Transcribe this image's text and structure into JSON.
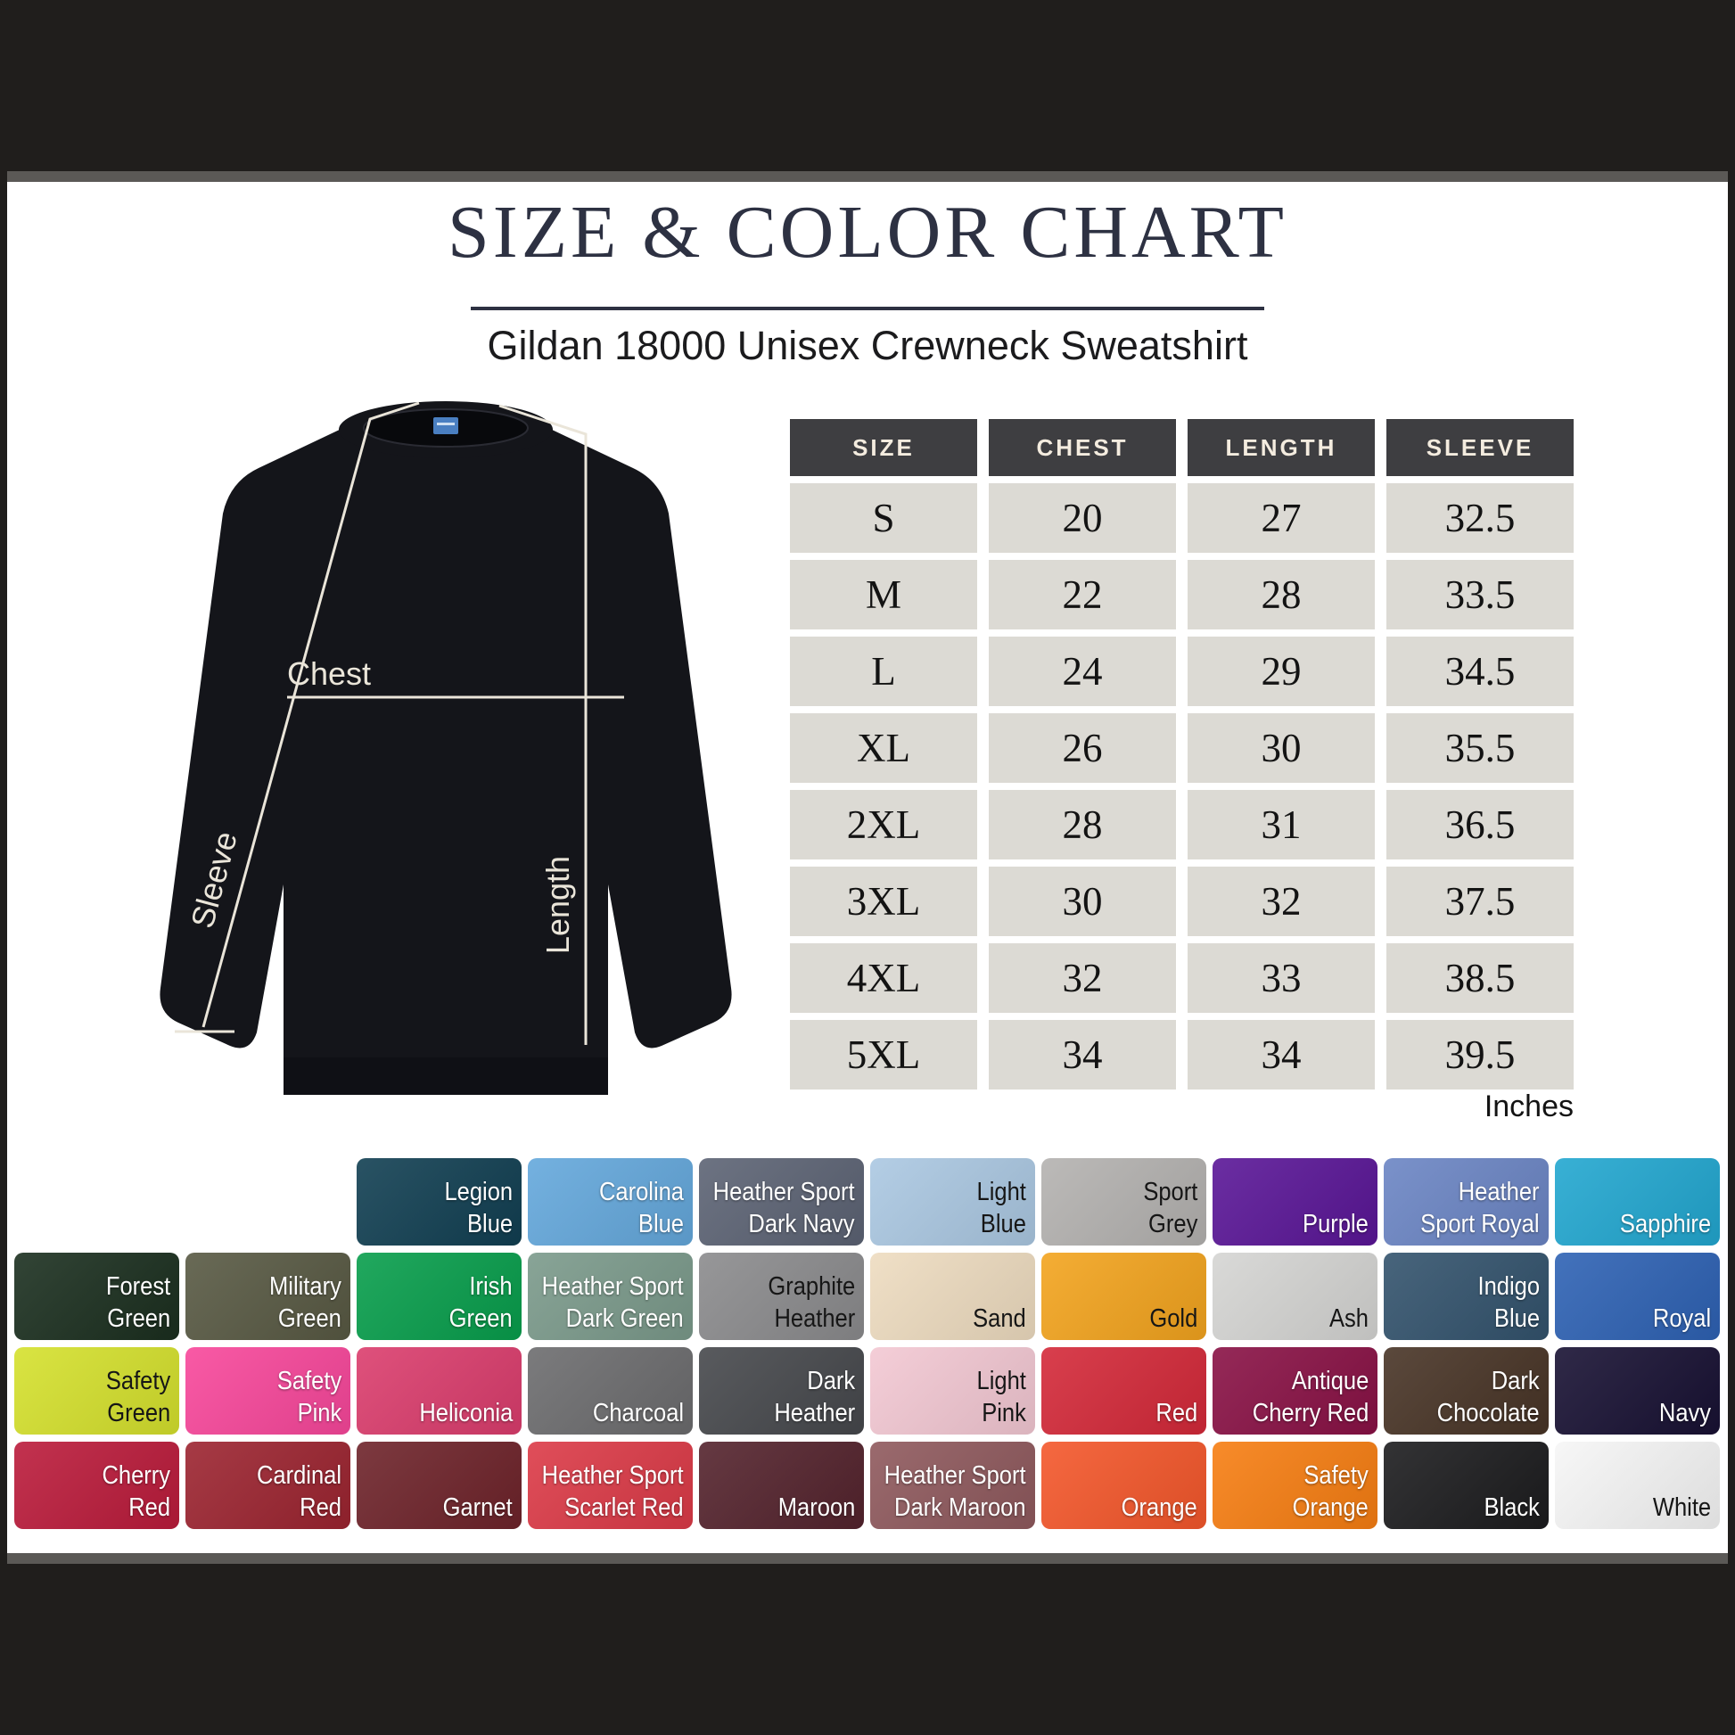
{
  "title": "SIZE & COLOR CHART",
  "subtitle": "Gildan 18000 Unisex Crewneck Sweatshirt",
  "diagram": {
    "chest_label": "Chest",
    "sleeve_label": "Sleeve",
    "length_label": "Length"
  },
  "size_table": {
    "headers": [
      "SIZE",
      "CHEST",
      "LENGTH",
      "SLEEVE"
    ],
    "rows": [
      {
        "size": "S",
        "chest": "20",
        "length": "27",
        "sleeve": "32.5"
      },
      {
        "size": "M",
        "chest": "22",
        "length": "28",
        "sleeve": "33.5"
      },
      {
        "size": "L",
        "chest": "24",
        "length": "29",
        "sleeve": "34.5"
      },
      {
        "size": "XL",
        "chest": "26",
        "length": "30",
        "sleeve": "35.5"
      },
      {
        "size": "2XL",
        "chest": "28",
        "length": "31",
        "sleeve": "36.5"
      },
      {
        "size": "3XL",
        "chest": "30",
        "length": "32",
        "sleeve": "37.5"
      },
      {
        "size": "4XL",
        "chest": "32",
        "length": "33",
        "sleeve": "38.5"
      },
      {
        "size": "5XL",
        "chest": "34",
        "length": "34",
        "sleeve": "39.5"
      }
    ],
    "unit_note": "Inches"
  },
  "colors": {
    "rows": [
      [
        {
          "name": "Legion Blue",
          "lines": [
            "Legion",
            "Blue"
          ],
          "hex": "#113f52",
          "dark_text": false
        },
        {
          "name": "Carolina Blue",
          "lines": [
            "Carolina",
            "Blue"
          ],
          "hex": "#64a8dc",
          "dark_text": false
        },
        {
          "name": "Heather Sport Dark Navy",
          "lines": [
            "Heather Sport",
            "Dark Navy"
          ],
          "hex": "#5c6374",
          "dark_text": false
        },
        {
          "name": "Light Blue",
          "lines": [
            "Light",
            "Blue"
          ],
          "hex": "#abc8e2",
          "dark_text": true
        },
        {
          "name": "Sport Grey",
          "lines": [
            "Sport",
            "Grey"
          ],
          "hex": "#b4b2b0",
          "dark_text": true
        },
        {
          "name": "Purple",
          "lines": [
            "Purple"
          ],
          "hex": "#5a1697",
          "dark_text": false
        },
        {
          "name": "Heather Sport Royal",
          "lines": [
            "Heather",
            "Sport Royal"
          ],
          "hex": "#6b85c4",
          "dark_text": false
        },
        {
          "name": "Sapphire",
          "lines": [
            "Sapphire"
          ],
          "hex": "#22a7d0",
          "dark_text": false
        }
      ],
      [
        {
          "name": "Forest Green",
          "lines": [
            "Forest",
            "Green"
          ],
          "hex": "#1b2f1f",
          "dark_text": false
        },
        {
          "name": "Military Green",
          "lines": [
            "Military",
            "Green"
          ],
          "hex": "#585943",
          "dark_text": false
        },
        {
          "name": "Irish Green",
          "lines": [
            "Irish",
            "Green"
          ],
          "hex": "#089e4c",
          "dark_text": false
        },
        {
          "name": "Heather Sport Dark Green",
          "lines": [
            "Heather Sport",
            "Dark Green"
          ],
          "hex": "#7b9a8b",
          "dark_text": false
        },
        {
          "name": "Graphite Heather",
          "lines": [
            "Graphite",
            "Heather"
          ],
          "hex": "#8b8b8d",
          "dark_text": true
        },
        {
          "name": "Sand",
          "lines": [
            "Sand"
          ],
          "hex": "#eedcc0",
          "dark_text": true
        },
        {
          "name": "Gold",
          "lines": [
            "Gold"
          ],
          "hex": "#f3a41e",
          "dark_text": true
        },
        {
          "name": "Ash",
          "lines": [
            "Ash"
          ],
          "hex": "#d5d5d3",
          "dark_text": true
        },
        {
          "name": "Indigo Blue",
          "lines": [
            "Indigo",
            "Blue"
          ],
          "hex": "#33536d",
          "dark_text": false
        },
        {
          "name": "Royal",
          "lines": [
            "Royal"
          ],
          "hex": "#2e62b4",
          "dark_text": false
        }
      ],
      [
        {
          "name": "Safety Green",
          "lines": [
            "Safety",
            "Green"
          ],
          "hex": "#d5e12d",
          "dark_text": true
        },
        {
          "name": "Safety Pink",
          "lines": [
            "Safety",
            "Pink"
          ],
          "hex": "#f8479b",
          "dark_text": false
        },
        {
          "name": "Heliconia",
          "lines": [
            "Heliconia"
          ],
          "hex": "#db3d6d",
          "dark_text": false
        },
        {
          "name": "Charcoal",
          "lines": [
            "Charcoal"
          ],
          "hex": "#6c6c6e",
          "dark_text": false
        },
        {
          "name": "Dark Heather",
          "lines": [
            "Dark",
            "Heather"
          ],
          "hex": "#46484c",
          "dark_text": false
        },
        {
          "name": "Light Pink",
          "lines": [
            "Light",
            "Pink"
          ],
          "hex": "#f3c8d3",
          "dark_text": true
        },
        {
          "name": "Red",
          "lines": [
            "Red"
          ],
          "hex": "#d42939",
          "dark_text": false
        },
        {
          "name": "Antique Cherry Red",
          "lines": [
            "Antique",
            "Cherry Red"
          ],
          "hex": "#891145",
          "dark_text": false
        },
        {
          "name": "Dark Chocolate",
          "lines": [
            "Dark",
            "Chocolate"
          ],
          "hex": "#483426",
          "dark_text": false
        },
        {
          "name": "Navy",
          "lines": [
            "Navy"
          ],
          "hex": "#181133",
          "dark_text": false
        }
      ],
      [
        {
          "name": "Cherry Red",
          "lines": [
            "Cherry",
            "Red"
          ],
          "hex": "#bb1b3b",
          "dark_text": false
        },
        {
          "name": "Cardinal Red",
          "lines": [
            "Cardinal",
            "Red"
          ],
          "hex": "#9c2430",
          "dark_text": false
        },
        {
          "name": "Garnet",
          "lines": [
            "Garnet"
          ],
          "hex": "#6e232a",
          "dark_text": false
        },
        {
          "name": "Heather Sport Scarlet Red",
          "lines": [
            "Heather Sport",
            "Scarlet Red"
          ],
          "hex": "#dc3a47",
          "dark_text": false
        },
        {
          "name": "Maroon",
          "lines": [
            "Maroon"
          ],
          "hex": "#54232d",
          "dark_text": false
        },
        {
          "name": "Heather Sport Dark Maroon",
          "lines": [
            "Heather Sport",
            "Dark Maroon"
          ],
          "hex": "#8f595d",
          "dark_text": false
        },
        {
          "name": "Orange",
          "lines": [
            "Orange"
          ],
          "hex": "#f4572b",
          "dark_text": false
        },
        {
          "name": "Safety Orange",
          "lines": [
            "Safety",
            "Orange"
          ],
          "hex": "#f77e12",
          "dark_text": false
        },
        {
          "name": "Black",
          "lines": [
            "Black"
          ],
          "hex": "#1c1c1e",
          "dark_text": false
        },
        {
          "name": "White",
          "lines": [
            "White"
          ],
          "hex": "#f6f6f6",
          "dark_text": true
        }
      ]
    ]
  }
}
